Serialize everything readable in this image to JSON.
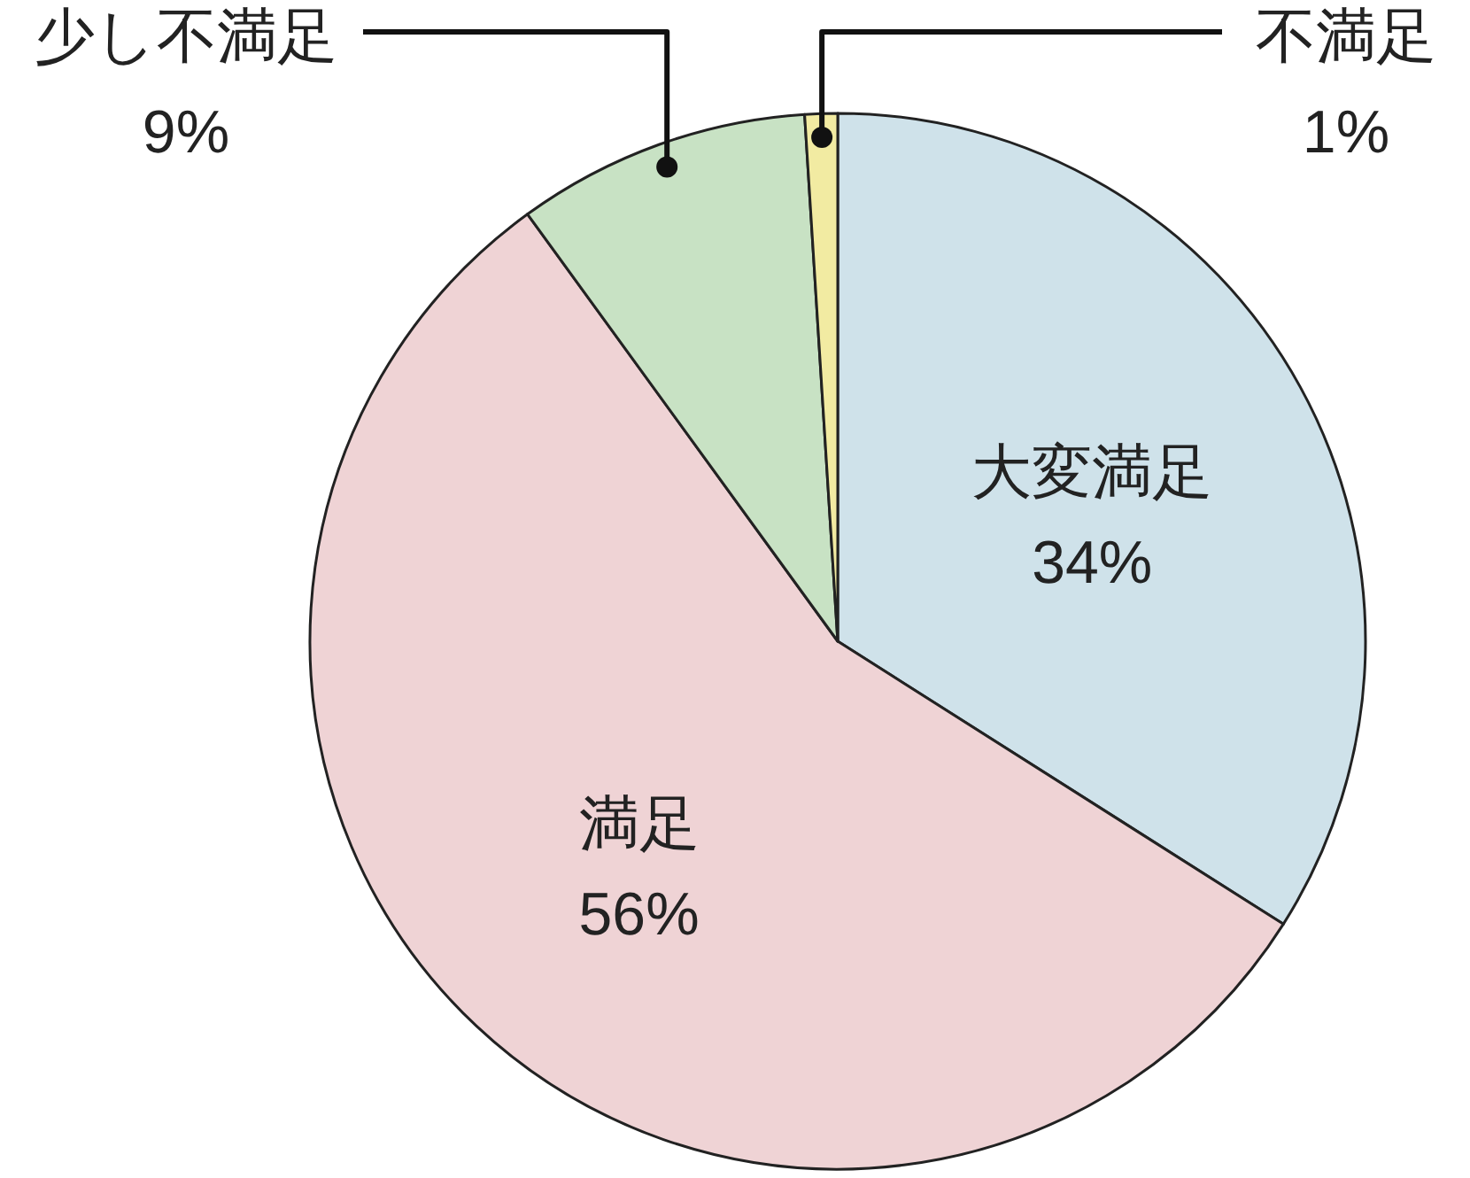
{
  "chart_data": {
    "type": "pie",
    "categories": [
      "大変満足",
      "満足",
      "少し不満足",
      "不満足"
    ],
    "values": [
      34,
      56,
      9,
      1
    ],
    "value_labels": [
      "34%",
      "56%",
      "9%",
      "1%"
    ],
    "colors": [
      "#cfe2ea",
      "#efd3d5",
      "#c8e2c4",
      "#f2eba2"
    ]
  }
}
